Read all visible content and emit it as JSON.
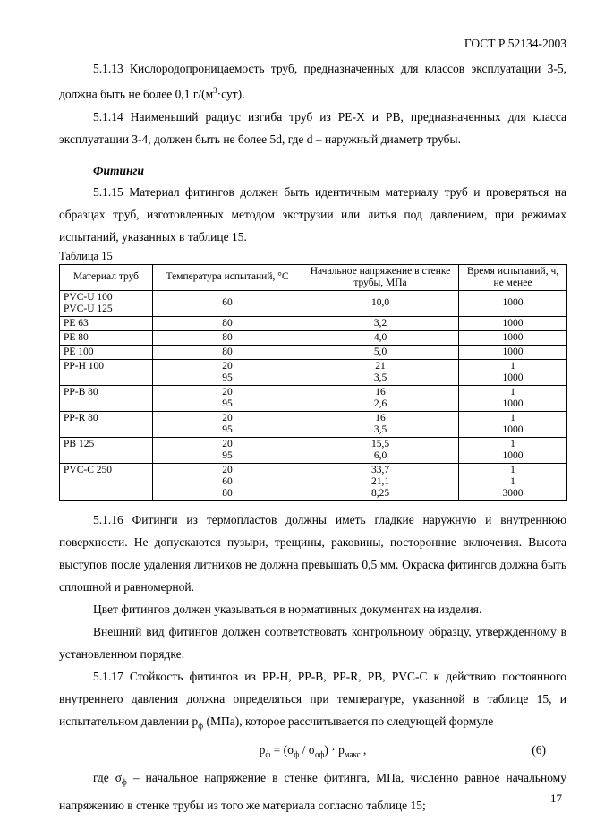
{
  "doc_header": "ГОСТ Р 52134-2003",
  "page_number": "17",
  "content": {
    "p5113": {
      "segments": [
        {
          "t": "5.1.13 Кислородопроницаемость труб, предназначенных для классов эксплуатации 3-5, должна быть не более 0,1 г/(м"
        },
        {
          "t": "3",
          "sup": true
        },
        {
          "t": "·сут)."
        }
      ]
    },
    "p5114": {
      "segments": [
        {
          "t": "5.1.14 Наименьший радиус изгиба труб из PE-X и PB, предназначенных для класса эксплуатации 3-4, должен быть не более 5d, где d – наружный диаметр трубы."
        }
      ]
    },
    "fittings_heading": "Фитинги",
    "p5115": {
      "segments": [
        {
          "t": "5.1.15 Материал фитингов должен быть идентичным материалу труб и проверяться на образцах труб, изготовленных методом экструзии или литья под давлением, при режимах испытаний, указанных в таблице 15."
        }
      ]
    },
    "table_caption": "Таблица 15",
    "p5116": {
      "segments": [
        {
          "t": "5.1.16 Фитинги из термопластов должны иметь гладкие наружную и внутреннюю поверхности. Не допускаются пузыри, трещины, раковины, посторонние включения. Высота выступов после удаления литников не должна превышать 0,5 мм. Окраска фитингов должна быть сплошной и равномерной."
        }
      ]
    },
    "p_color": {
      "segments": [
        {
          "t": "Цвет фитингов должен указываться в нормативных документах на изделия."
        }
      ]
    },
    "p_appearance": {
      "segments": [
        {
          "t": "Внешний вид фитингов должен соответствовать контрольному образцу, утвержденному в установленном порядке."
        }
      ]
    },
    "p5117": {
      "segments": [
        {
          "t": "5.1.17 Стойкость фитингов из PP-H, PP-B, PP-R, PB, PVC-C к действию постоянного внутреннего давления должна определяться при температуре, указанной в таблице 15, и испытательном давлении р"
        },
        {
          "t": "ф",
          "sub": true
        },
        {
          "t": " (МПа), которое рассчитывается по следующей формуле"
        }
      ]
    },
    "p_where": {
      "segments": [
        {
          "t": "где  σ"
        },
        {
          "t": "ф",
          "sub": true
        },
        {
          "t": " – начальное напряжение в стенке фитинга, МПа, численно равное начальному напряжению в стенке трубы из того же материала согласно таблице  15;"
        }
      ]
    }
  },
  "formula": {
    "segments": [
      {
        "t": "р"
      },
      {
        "t": "ф",
        "sub": true
      },
      {
        "t": " = ("
      },
      {
        "t": "σ"
      },
      {
        "t": "ф",
        "sub": true
      },
      {
        "t": " / "
      },
      {
        "t": "σ"
      },
      {
        "t": "оф",
        "sub": true
      },
      {
        "t": ") · "
      },
      {
        "t": "р"
      },
      {
        "t": "макс",
        "sub": true
      },
      {
        "t": " ,"
      }
    ],
    "number": "(6)"
  },
  "table": {
    "columns": [
      "Материал труб",
      "Температура испытаний, °С",
      "Начальное напряжение в стенке трубы, МПа",
      "Время испытаний, ч, не менее"
    ],
    "rows": [
      {
        "material": [
          "PVC-U 100",
          "PVC-U 125"
        ],
        "temp": [
          "60"
        ],
        "stress": [
          "10,0"
        ],
        "time": [
          "1000"
        ],
        "valign": "middle"
      },
      {
        "material": [
          "PE 63"
        ],
        "temp": [
          "80"
        ],
        "stress": [
          "3,2"
        ],
        "time": [
          "1000"
        ]
      },
      {
        "material": [
          "PE 80"
        ],
        "temp": [
          "80"
        ],
        "stress": [
          "4,0"
        ],
        "time": [
          "1000"
        ]
      },
      {
        "material": [
          "PE 100"
        ],
        "temp": [
          "80"
        ],
        "stress": [
          "5,0"
        ],
        "time": [
          "1000"
        ]
      },
      {
        "material": [
          "PP-H 100"
        ],
        "temp": [
          "20",
          "95"
        ],
        "stress": [
          "21",
          "3,5"
        ],
        "time": [
          "1",
          "1000"
        ]
      },
      {
        "material": [
          "PP-B 80"
        ],
        "temp": [
          "20",
          "95"
        ],
        "stress": [
          "16",
          "2,6"
        ],
        "time": [
          "1",
          "1000"
        ]
      },
      {
        "material": [
          "PP-R 80"
        ],
        "temp": [
          "20",
          "95"
        ],
        "stress": [
          "16",
          "3,5"
        ],
        "time": [
          "1",
          "1000"
        ]
      },
      {
        "material": [
          "PB 125"
        ],
        "temp": [
          "20",
          "95"
        ],
        "stress": [
          "15,5",
          "6,0"
        ],
        "time": [
          "1",
          "1000"
        ]
      },
      {
        "material": [
          "PVC-C 250"
        ],
        "temp": [
          "20",
          "60",
          "80"
        ],
        "stress": [
          "33,7",
          "21,1",
          "8,25"
        ],
        "time": [
          "1",
          "1",
          "3000"
        ]
      }
    ]
  }
}
